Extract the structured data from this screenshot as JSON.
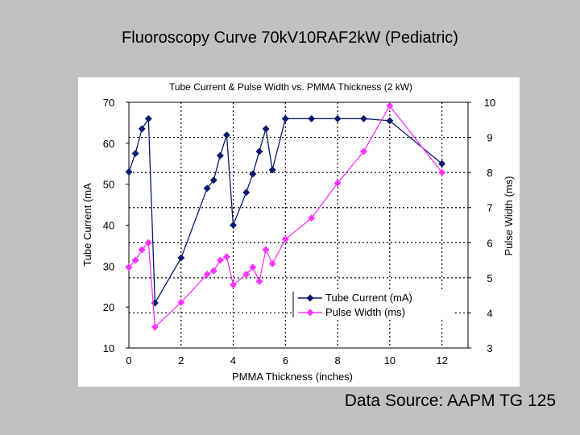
{
  "slide": {
    "title": "Fluoroscopy Curve 70kV10RAF2kW (Pediatric)",
    "source": "Data Source: AAPM TG 125"
  },
  "chart_data": {
    "type": "line",
    "title": "Tube Current & Pulse Width vs. PMMA Thickness (2 kW)",
    "xlabel": "PMMA Thickness (inches)",
    "ylabel": "Tube Current (mA",
    "y2label": "Pulse Width (ms)",
    "xlim": [
      0,
      13
    ],
    "ylim": [
      10,
      70
    ],
    "y2lim": [
      3,
      10
    ],
    "xticks": [
      "0",
      "2",
      "4",
      "6",
      "8",
      "10",
      "12"
    ],
    "yticks": [
      "10",
      "20",
      "30",
      "40",
      "50",
      "60",
      "70"
    ],
    "y2ticks": [
      "3",
      "4",
      "5",
      "6",
      "7",
      "8",
      "9",
      "10"
    ],
    "grid": true,
    "legend": "bottom-right",
    "series": [
      {
        "name": "Tube Current (mA)",
        "axis": "left",
        "color": "#0a1a6e",
        "marker": "diamond",
        "x": [
          0,
          0.25,
          0.5,
          0.75,
          1,
          2,
          3,
          3.25,
          3.5,
          3.75,
          4,
          4.5,
          4.75,
          5,
          5.25,
          5.5,
          6,
          7,
          8,
          9,
          10,
          12
        ],
        "values": [
          53,
          57.5,
          63.5,
          66,
          21,
          32,
          49,
          51,
          57,
          62,
          40,
          48,
          52.5,
          58,
          63.5,
          53.5,
          66,
          66,
          66,
          66,
          65.5,
          55
        ]
      },
      {
        "name": "Pulse Width (ms)",
        "axis": "right",
        "color": "#ff33ff",
        "marker": "diamond",
        "x": [
          0,
          0.25,
          0.5,
          0.75,
          1,
          2,
          3,
          3.25,
          3.5,
          3.75,
          4,
          4.5,
          4.75,
          5,
          5.25,
          5.5,
          6,
          7,
          8,
          9,
          10,
          12
        ],
        "values": [
          5.3,
          5.5,
          5.8,
          6.0,
          3.6,
          4.3,
          5.1,
          5.2,
          5.5,
          5.6,
          4.8,
          5.1,
          5.3,
          4.9,
          5.8,
          5.4,
          6.1,
          6.7,
          7.7,
          8.6,
          9.9,
          8.0
        ]
      }
    ]
  }
}
